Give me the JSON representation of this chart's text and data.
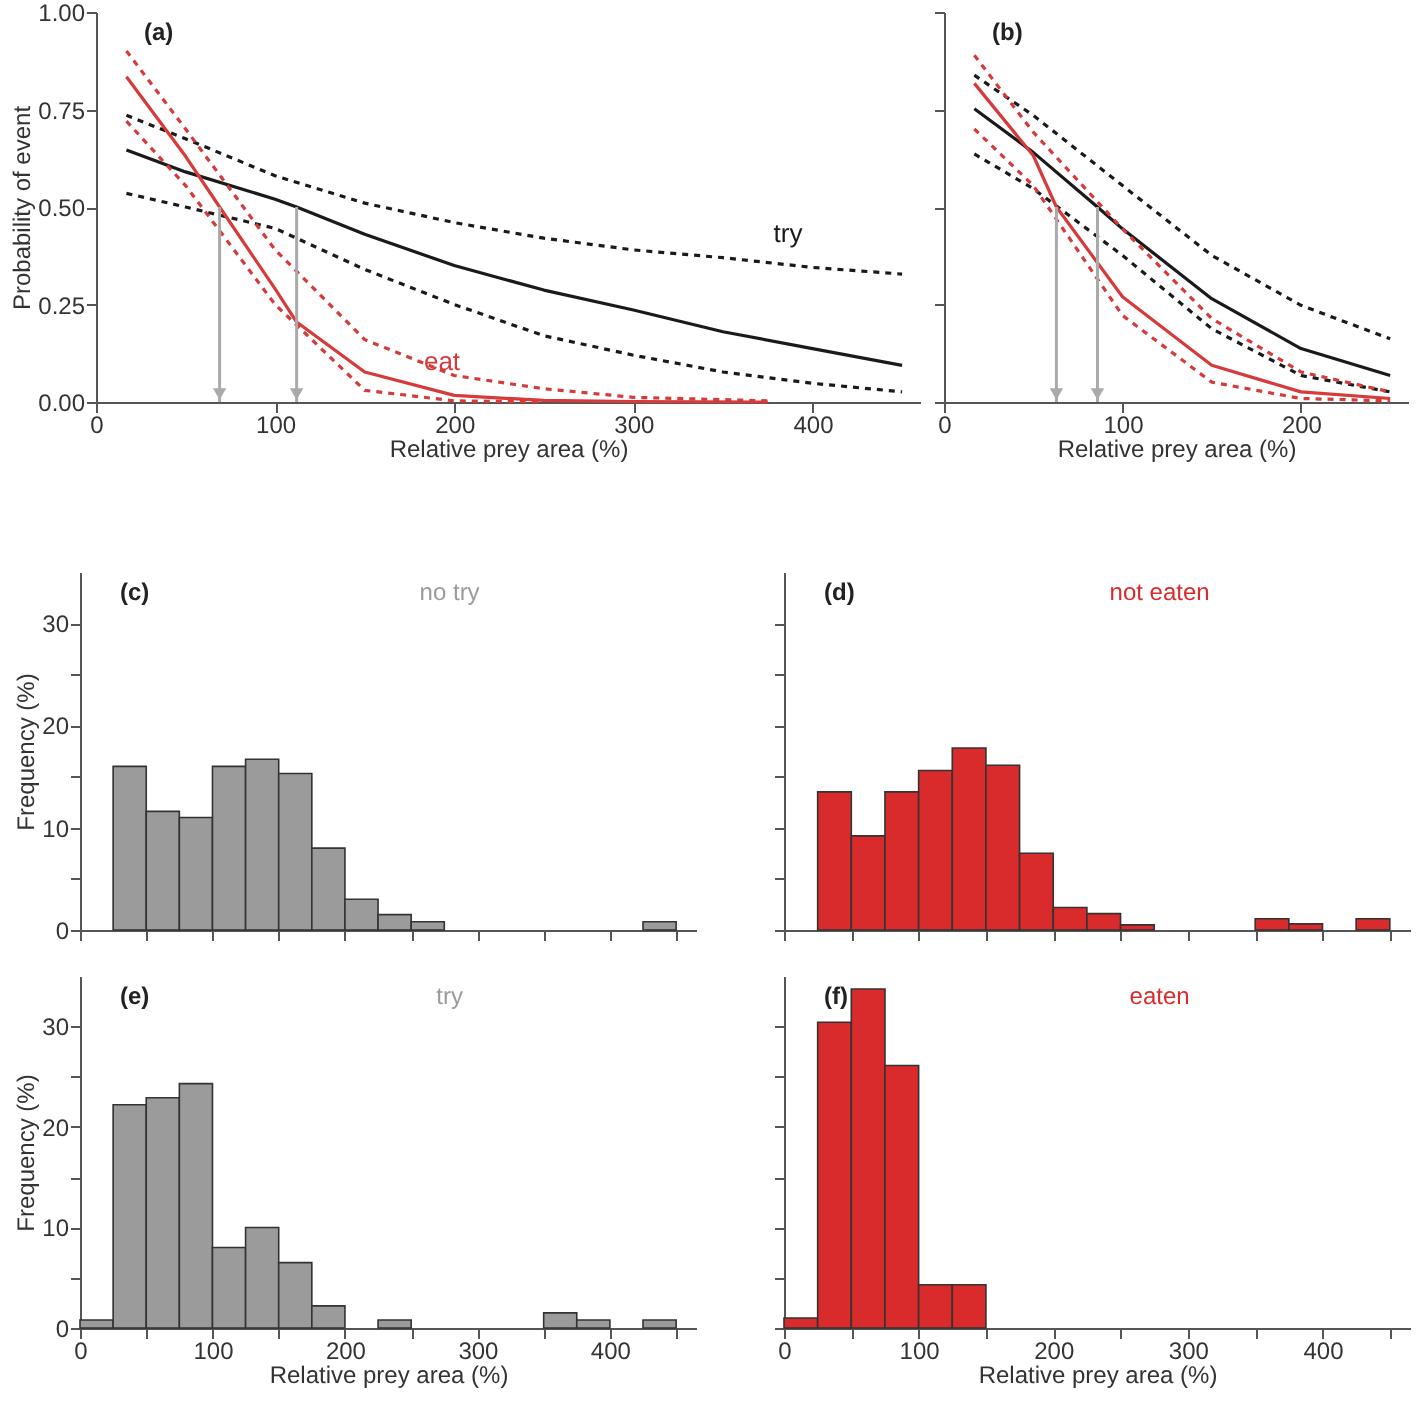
{
  "chart_data": [
    {
      "type": "line",
      "title": "(a)",
      "xlabel": "Relative prey area (%)",
      "ylabel": "Probability of event",
      "xlim": [
        0,
        460
      ],
      "xticks": [
        0,
        100,
        200,
        300,
        400
      ],
      "ylim": [
        0,
        1
      ],
      "yticks": [
        {
          "value": 0,
          "label": "0.00"
        },
        0.25,
        {
          "value": 0.5,
          "label": "0.50"
        },
        0.75,
        {
          "value": 1,
          "label": "1.00"
        }
      ],
      "series": [
        {
          "name": "try",
          "color": "#1a1a1a",
          "x": [
            17,
            50,
            100,
            112,
            150,
            200,
            250,
            300,
            350,
            400,
            450
          ],
          "values": [
            0.646,
            0.59,
            0.52,
            0.5,
            0.43,
            0.35,
            0.287,
            0.236,
            0.18,
            0.137,
            0.094
          ]
        },
        {
          "color": "#1a1a1a",
          "line_style": "dashed",
          "x": [
            17,
            50,
            100,
            150,
            200,
            250,
            300,
            350,
            400,
            450
          ],
          "values": [
            0.735,
            0.675,
            0.58,
            0.51,
            0.46,
            0.42,
            0.39,
            0.37,
            0.345,
            0.328
          ]
        },
        {
          "color": "#1a1a1a",
          "line_style": "dashed",
          "x": [
            17,
            50,
            100,
            150,
            200,
            250,
            300,
            350,
            400,
            450
          ],
          "values": [
            0.535,
            0.5,
            0.445,
            0.34,
            0.25,
            0.17,
            0.12,
            0.077,
            0.048,
            0.026
          ]
        },
        {
          "name": "eat",
          "color": "#d63a3a",
          "x": [
            17,
            50,
            69,
            100,
            112,
            150,
            200,
            250,
            300,
            375
          ],
          "values": [
            0.834,
            0.63,
            0.5,
            0.29,
            0.205,
            0.077,
            0.017,
            0.004,
            0.001,
            0
          ]
        },
        {
          "color": "#d63a3a",
          "line_style": "dashed",
          "x": [
            17,
            50,
            100,
            150,
            200,
            250,
            300,
            375
          ],
          "values": [
            0.9,
            0.7,
            0.39,
            0.16,
            0.068,
            0.034,
            0.012,
            0.003
          ]
        },
        {
          "color": "#d63a3a",
          "line_style": "dashed",
          "x": [
            17,
            50,
            100,
            150,
            200,
            250
          ],
          "values": [
            0.72,
            0.555,
            0.25,
            0.03,
            0.003,
            0
          ]
        }
      ]
    },
    {
      "type": "line",
      "title": "(b)",
      "xlabel": "Relative prey area (%)",
      "xlim": [
        0,
        260
      ],
      "xticks": [
        0,
        100,
        200
      ],
      "ylim": [
        0,
        1
      ],
      "yticks": [
        0,
        0.25,
        0.5,
        0.75,
        1
      ],
      "tick_labels": "x",
      "series": [
        {
          "color": "#1a1a1a",
          "x": [
            17,
            50,
            86,
            100,
            150,
            200,
            250
          ],
          "values": [
            0.752,
            0.64,
            0.5,
            0.444,
            0.265,
            0.137,
            0.068
          ]
        },
        {
          "color": "#1a1a1a",
          "line_style": "dashed",
          "x": [
            17,
            50,
            100,
            150,
            200,
            250
          ],
          "values": [
            0.838,
            0.735,
            0.555,
            0.376,
            0.248,
            0.162
          ]
        },
        {
          "color": "#1a1a1a",
          "line_style": "dashed",
          "x": [
            17,
            50,
            100,
            150,
            200,
            250
          ],
          "values": [
            0.636,
            0.547,
            0.376,
            0.188,
            0.068,
            0.026
          ]
        },
        {
          "color": "#d63a3a",
          "x": [
            17,
            50,
            63,
            100,
            150,
            200,
            250
          ],
          "values": [
            0.817,
            0.632,
            0.5,
            0.27,
            0.094,
            0.026,
            0.009
          ]
        },
        {
          "color": "#d63a3a",
          "line_style": "dashed",
          "x": [
            17,
            50,
            100,
            150,
            200,
            250
          ],
          "values": [
            0.889,
            0.692,
            0.444,
            0.214,
            0.077,
            0.026
          ]
        },
        {
          "color": "#d63a3a",
          "line_style": "dashed",
          "x": [
            17,
            50,
            100,
            150,
            200,
            250
          ],
          "values": [
            0.7,
            0.555,
            0.222,
            0.051,
            0.009,
            0.003
          ]
        }
      ]
    },
    {
      "type": "histogram",
      "title": "(c)",
      "ylabel": "Frequency (%)",
      "xlim": [
        0,
        465
      ],
      "xticks": [
        0,
        {
          "value": 50,
          "label": null
        },
        100,
        {
          "value": 150,
          "label": null
        },
        200,
        {
          "value": 250,
          "label": null
        },
        300,
        {
          "value": 350,
          "label": null
        },
        400,
        {
          "value": 450,
          "label": null
        }
      ],
      "ylim": [
        0,
        35
      ],
      "yticks": [
        0,
        {
          "value": 5,
          "label": null
        },
        10,
        {
          "value": 15,
          "label": null
        },
        20,
        {
          "value": 25,
          "label": null
        },
        30
      ],
      "tick_labels": "y",
      "bins": [
        0,
        25,
        50,
        75,
        100,
        125,
        150,
        175,
        200,
        225,
        250,
        275,
        300,
        325,
        350,
        375,
        400,
        425,
        450
      ],
      "series": [
        {
          "name": "no try",
          "color": "#9b9b9b",
          "values": [
            null,
            16,
            11.6,
            11,
            16,
            16.7,
            15.3,
            8,
            3,
            1.5,
            0.8,
            null,
            null,
            null,
            null,
            null,
            null,
            0.8
          ]
        }
      ]
    },
    {
      "type": "histogram",
      "title": "(d)",
      "xlim": [
        0,
        465
      ],
      "xticks": [
        0,
        {
          "value": 50,
          "label": null
        },
        100,
        {
          "value": 150,
          "label": null
        },
        200,
        {
          "value": 250,
          "label": null
        },
        300,
        {
          "value": 350,
          "label": null
        },
        400,
        {
          "value": 450,
          "label": null
        }
      ],
      "ylim": [
        0,
        35
      ],
      "yticks": [
        0,
        {
          "value": 5,
          "label": null
        },
        10,
        {
          "value": 15,
          "label": null
        },
        20,
        {
          "value": 25,
          "label": null
        },
        30
      ],
      "tick_labels": false,
      "bins": [
        0,
        25,
        50,
        75,
        100,
        125,
        150,
        175,
        200,
        225,
        250,
        275,
        300,
        325,
        350,
        375,
        400,
        425,
        450
      ],
      "series": [
        {
          "name": "not eaten",
          "color": "#d92b2b",
          "values": [
            null,
            13.5,
            9.2,
            13.5,
            15.6,
            17.8,
            16.1,
            7.5,
            2.2,
            1.6,
            0.5,
            null,
            null,
            null,
            1.1,
            0.6,
            null,
            1.1
          ]
        }
      ]
    },
    {
      "type": "histogram",
      "title": "(e)",
      "xlabel": "Relative prey area (%)",
      "ylabel": "Frequency (%)",
      "xlim": [
        0,
        465
      ],
      "xticks": [
        0,
        {
          "value": 50,
          "label": null
        },
        100,
        {
          "value": 150,
          "label": null
        },
        200,
        {
          "value": 250,
          "label": null
        },
        300,
        {
          "value": 350,
          "label": null
        },
        400,
        {
          "value": 450,
          "label": null
        }
      ],
      "ylim": [
        0,
        35
      ],
      "yticks": [
        0,
        {
          "value": 5,
          "label": null
        },
        10,
        {
          "value": 15,
          "label": null
        },
        20,
        {
          "value": 25,
          "label": null
        },
        30
      ],
      "bins": [
        0,
        25,
        50,
        75,
        100,
        125,
        150,
        175,
        200,
        225,
        250,
        275,
        300,
        325,
        350,
        375,
        400,
        425,
        450
      ],
      "series": [
        {
          "name": "try",
          "color": "#9b9b9b",
          "values": [
            0.8,
            22.2,
            22.9,
            24.3,
            8,
            10,
            6.5,
            2.2,
            null,
            0.8,
            null,
            null,
            null,
            null,
            1.5,
            0.8,
            null,
            0.8
          ]
        }
      ]
    },
    {
      "type": "histogram",
      "title": "(f)",
      "xlabel": "Relative prey area (%)",
      "xlim": [
        0,
        465
      ],
      "xticks": [
        0,
        {
          "value": 50,
          "label": null
        },
        100,
        {
          "value": 150,
          "label": null
        },
        200,
        {
          "value": 250,
          "label": null
        },
        300,
        {
          "value": 350,
          "label": null
        },
        400,
        {
          "value": 450,
          "label": null
        }
      ],
      "ylim": [
        0,
        35
      ],
      "yticks": [
        0,
        {
          "value": 5,
          "label": null
        },
        10,
        {
          "value": 15,
          "label": null
        },
        20,
        {
          "value": 25,
          "label": null
        },
        30
      ],
      "tick_labels": "x",
      "bins": [
        0,
        25,
        50,
        75,
        100,
        125,
        150,
        175,
        200,
        225,
        250,
        275,
        300,
        325,
        350,
        375,
        400,
        425,
        450
      ],
      "series": [
        {
          "name": "eaten",
          "color": "#d92b2b",
          "values": [
            1,
            30.4,
            33.7,
            26.1,
            4.3,
            4.3,
            null,
            null,
            null,
            null,
            null,
            null,
            null,
            null,
            null,
            null,
            null,
            null
          ]
        }
      ]
    }
  ]
}
